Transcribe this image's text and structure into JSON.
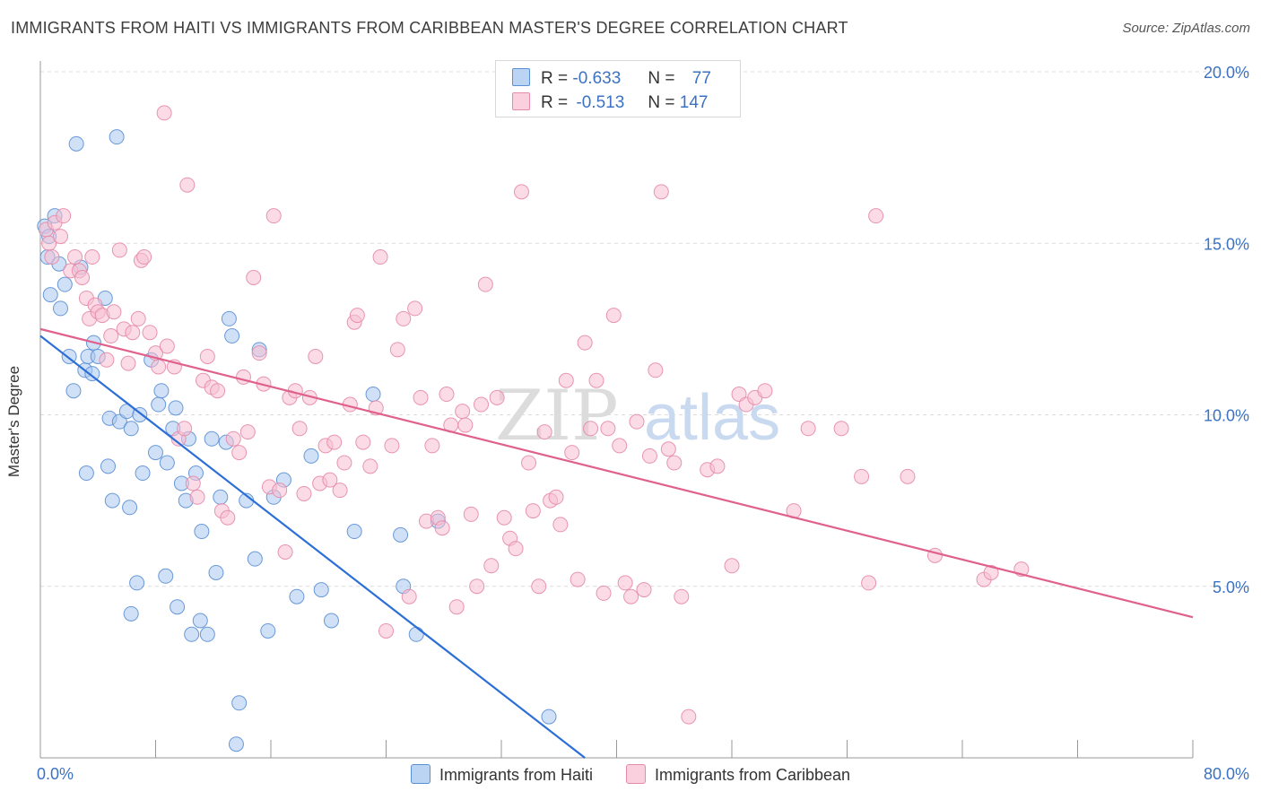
{
  "title": "IMMIGRANTS FROM HAITI VS IMMIGRANTS FROM CARIBBEAN MASTER'S DEGREE CORRELATION CHART",
  "source": "Source: ZipAtlas.com",
  "colors": {
    "haiti_fill": "#a9c8f0",
    "haiti_stroke": "#5b8fd4",
    "haiti_line": "#2c6fd6",
    "carib_fill": "#f7c0d2",
    "carib_stroke": "#e58aa8",
    "carib_line": "#e0608c",
    "axis_text": "#3b72c4",
    "grid": "#dcdcdc"
  },
  "legend": {
    "rows": [
      {
        "r_label": "R =",
        "r_value": "-0.633",
        "n_label": "N =",
        "n_value": "77"
      },
      {
        "r_label": "R =",
        "r_value": "-0.513",
        "n_label": "N =",
        "n_value": "147"
      }
    ]
  },
  "watermark": {
    "part1": "ZIP",
    "part2": "atlas"
  },
  "chart_data": {
    "type": "scatter",
    "title": "IMMIGRANTS FROM HAITI VS IMMIGRANTS FROM CARIBBEAN MASTER'S DEGREE CORRELATION CHART",
    "xlabel": "",
    "ylabel": "Master's Degree",
    "xlim": [
      0,
      80
    ],
    "ylim": [
      0,
      20
    ],
    "x_tick_labels": [
      "0.0%",
      "80.0%"
    ],
    "y_ticks": [
      5,
      10,
      15,
      20
    ],
    "y_tick_labels": [
      "5.0%",
      "10.0%",
      "15.0%",
      "20.0%"
    ],
    "grid": true,
    "legend_position": "top-center",
    "series": [
      {
        "name": "Immigrants from Haiti",
        "r": -0.633,
        "n": 77,
        "trend": {
          "x": [
            0,
            37.8
          ],
          "y": [
            12.3,
            0
          ]
        },
        "points": [
          [
            0.3,
            15.5
          ],
          [
            0.5,
            14.6
          ],
          [
            0.6,
            15.2
          ],
          [
            1.0,
            15.8
          ],
          [
            0.7,
            13.5
          ],
          [
            1.3,
            14.4
          ],
          [
            1.4,
            13.1
          ],
          [
            1.7,
            13.8
          ],
          [
            2.0,
            11.7
          ],
          [
            2.5,
            17.9
          ],
          [
            2.3,
            10.7
          ],
          [
            2.8,
            14.3
          ],
          [
            3.1,
            11.3
          ],
          [
            3.3,
            11.7
          ],
          [
            3.6,
            11.2
          ],
          [
            3.2,
            8.3
          ],
          [
            3.7,
            12.1
          ],
          [
            4.0,
            11.7
          ],
          [
            4.5,
            13.4
          ],
          [
            4.7,
            8.5
          ],
          [
            4.8,
            9.9
          ],
          [
            5.0,
            7.5
          ],
          [
            5.5,
            9.8
          ],
          [
            5.3,
            18.1
          ],
          [
            6.0,
            10.1
          ],
          [
            6.2,
            7.3
          ],
          [
            6.3,
            9.6
          ],
          [
            6.7,
            5.1
          ],
          [
            6.9,
            10.0
          ],
          [
            7.1,
            8.3
          ],
          [
            6.3,
            4.2
          ],
          [
            7.7,
            11.6
          ],
          [
            8.0,
            8.9
          ],
          [
            8.2,
            10.3
          ],
          [
            8.4,
            10.7
          ],
          [
            8.7,
            5.3
          ],
          [
            8.8,
            8.6
          ],
          [
            9.2,
            9.6
          ],
          [
            9.4,
            10.2
          ],
          [
            9.5,
            4.4
          ],
          [
            9.8,
            8.0
          ],
          [
            10.1,
            7.5
          ],
          [
            10.3,
            9.3
          ],
          [
            10.5,
            3.6
          ],
          [
            10.8,
            8.3
          ],
          [
            11.1,
            4.0
          ],
          [
            11.2,
            6.6
          ],
          [
            11.6,
            3.6
          ],
          [
            11.9,
            9.3
          ],
          [
            12.2,
            5.4
          ],
          [
            12.5,
            7.6
          ],
          [
            12.9,
            9.2
          ],
          [
            13.3,
            12.3
          ],
          [
            13.1,
            12.8
          ],
          [
            13.8,
            1.6
          ],
          [
            13.6,
            0.4
          ],
          [
            14.3,
            7.5
          ],
          [
            14.9,
            5.8
          ],
          [
            15.2,
            11.9
          ],
          [
            15.8,
            3.7
          ],
          [
            16.2,
            7.6
          ],
          [
            16.9,
            8.1
          ],
          [
            17.8,
            4.7
          ],
          [
            18.8,
            8.8
          ],
          [
            19.5,
            4.9
          ],
          [
            20.2,
            4.0
          ],
          [
            21.8,
            6.6
          ],
          [
            23.1,
            10.6
          ],
          [
            25.0,
            6.5
          ],
          [
            25.2,
            5.0
          ],
          [
            26.1,
            3.6
          ],
          [
            27.6,
            6.9
          ],
          [
            35.3,
            1.2
          ]
        ]
      },
      {
        "name": "Immigrants from Caribbean",
        "r": -0.513,
        "n": 147,
        "trend": {
          "x": [
            0,
            80
          ],
          "y": [
            12.5,
            4.1
          ]
        },
        "points": [
          [
            0.4,
            15.4
          ],
          [
            0.6,
            15.0
          ],
          [
            0.8,
            14.6
          ],
          [
            1.0,
            15.6
          ],
          [
            1.4,
            15.2
          ],
          [
            1.6,
            15.8
          ],
          [
            2.1,
            14.2
          ],
          [
            2.4,
            14.6
          ],
          [
            2.7,
            14.2
          ],
          [
            2.9,
            14.0
          ],
          [
            3.2,
            13.4
          ],
          [
            3.4,
            12.8
          ],
          [
            3.6,
            14.6
          ],
          [
            3.8,
            13.2
          ],
          [
            4.0,
            13.0
          ],
          [
            4.3,
            12.9
          ],
          [
            4.6,
            11.6
          ],
          [
            4.9,
            12.3
          ],
          [
            5.1,
            13.0
          ],
          [
            5.5,
            14.8
          ],
          [
            5.8,
            12.5
          ],
          [
            6.1,
            11.5
          ],
          [
            6.4,
            12.4
          ],
          [
            6.8,
            12.8
          ],
          [
            7.0,
            14.5
          ],
          [
            7.2,
            14.6
          ],
          [
            7.6,
            12.4
          ],
          [
            8.0,
            11.8
          ],
          [
            8.2,
            11.4
          ],
          [
            8.6,
            18.8
          ],
          [
            8.8,
            12.0
          ],
          [
            9.3,
            11.4
          ],
          [
            9.6,
            9.3
          ],
          [
            10.0,
            9.6
          ],
          [
            10.2,
            16.7
          ],
          [
            10.6,
            8.0
          ],
          [
            10.9,
            7.6
          ],
          [
            11.3,
            11.0
          ],
          [
            11.6,
            11.7
          ],
          [
            11.9,
            10.8
          ],
          [
            12.3,
            10.7
          ],
          [
            12.6,
            7.2
          ],
          [
            13.0,
            7.0
          ],
          [
            13.4,
            9.3
          ],
          [
            13.8,
            8.9
          ],
          [
            14.1,
            11.1
          ],
          [
            14.4,
            9.5
          ],
          [
            14.8,
            14.0
          ],
          [
            15.2,
            11.8
          ],
          [
            15.5,
            10.9
          ],
          [
            15.9,
            7.9
          ],
          [
            16.2,
            15.8
          ],
          [
            16.6,
            7.8
          ],
          [
            17.0,
            6.0
          ],
          [
            17.3,
            10.5
          ],
          [
            17.7,
            10.7
          ],
          [
            18.0,
            9.6
          ],
          [
            18.3,
            7.7
          ],
          [
            18.7,
            10.5
          ],
          [
            19.1,
            11.7
          ],
          [
            19.4,
            8.0
          ],
          [
            19.8,
            9.1
          ],
          [
            20.1,
            8.1
          ],
          [
            20.4,
            9.2
          ],
          [
            20.8,
            7.8
          ],
          [
            21.1,
            8.6
          ],
          [
            21.5,
            10.3
          ],
          [
            21.8,
            12.7
          ],
          [
            22.0,
            12.9
          ],
          [
            22.4,
            9.2
          ],
          [
            22.9,
            8.5
          ],
          [
            23.3,
            10.2
          ],
          [
            23.6,
            14.6
          ],
          [
            24.0,
            3.7
          ],
          [
            24.4,
            9.1
          ],
          [
            24.8,
            11.9
          ],
          [
            25.2,
            12.8
          ],
          [
            25.6,
            4.7
          ],
          [
            26.0,
            13.1
          ],
          [
            26.4,
            10.5
          ],
          [
            26.8,
            6.9
          ],
          [
            27.2,
            9.1
          ],
          [
            27.6,
            7.0
          ],
          [
            27.9,
            6.7
          ],
          [
            28.2,
            10.6
          ],
          [
            28.5,
            9.7
          ],
          [
            28.9,
            4.4
          ],
          [
            29.3,
            10.1
          ],
          [
            29.5,
            9.7
          ],
          [
            29.9,
            7.1
          ],
          [
            30.3,
            5.0
          ],
          [
            30.6,
            10.3
          ],
          [
            30.9,
            13.8
          ],
          [
            31.3,
            5.6
          ],
          [
            31.7,
            10.5
          ],
          [
            32.2,
            7.0
          ],
          [
            32.6,
            6.4
          ],
          [
            33.0,
            6.1
          ],
          [
            33.4,
            16.5
          ],
          [
            33.9,
            8.6
          ],
          [
            34.2,
            7.2
          ],
          [
            34.6,
            5.0
          ],
          [
            35.0,
            9.5
          ],
          [
            35.4,
            7.5
          ],
          [
            35.8,
            7.6
          ],
          [
            36.1,
            6.8
          ],
          [
            36.5,
            11.0
          ],
          [
            36.9,
            8.9
          ],
          [
            37.3,
            5.2
          ],
          [
            37.8,
            12.1
          ],
          [
            38.2,
            9.6
          ],
          [
            38.6,
            11.0
          ],
          [
            39.1,
            4.8
          ],
          [
            39.4,
            9.6
          ],
          [
            39.8,
            12.9
          ],
          [
            40.2,
            9.1
          ],
          [
            40.6,
            5.1
          ],
          [
            41.0,
            4.7
          ],
          [
            41.4,
            9.8
          ],
          [
            41.9,
            4.9
          ],
          [
            42.3,
            8.8
          ],
          [
            42.7,
            11.3
          ],
          [
            43.1,
            16.5
          ],
          [
            43.6,
            9.0
          ],
          [
            44.0,
            8.6
          ],
          [
            44.5,
            4.7
          ],
          [
            45.0,
            1.2
          ],
          [
            46.3,
            8.4
          ],
          [
            47.0,
            8.5
          ],
          [
            48.0,
            5.6
          ],
          [
            48.5,
            10.6
          ],
          [
            49.0,
            10.3
          ],
          [
            49.6,
            10.5
          ],
          [
            50.3,
            10.7
          ],
          [
            52.3,
            7.2
          ],
          [
            53.3,
            9.6
          ],
          [
            55.6,
            9.6
          ],
          [
            57.0,
            8.2
          ],
          [
            57.5,
            5.1
          ],
          [
            58.0,
            15.8
          ],
          [
            60.2,
            8.2
          ],
          [
            62.1,
            5.9
          ],
          [
            65.5,
            5.2
          ],
          [
            66.0,
            5.4
          ],
          [
            68.1,
            5.5
          ]
        ]
      }
    ]
  },
  "bottom_legend": [
    {
      "label": "Immigrants from Haiti"
    },
    {
      "label": "Immigrants from Caribbean"
    }
  ]
}
